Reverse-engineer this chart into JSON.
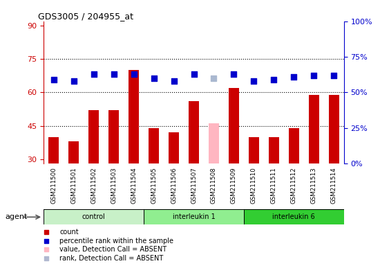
{
  "title": "GDS3005 / 204955_at",
  "samples": [
    "GSM211500",
    "GSM211501",
    "GSM211502",
    "GSM211503",
    "GSM211504",
    "GSM211505",
    "GSM211506",
    "GSM211507",
    "GSM211508",
    "GSM211509",
    "GSM211510",
    "GSM211511",
    "GSM211512",
    "GSM211513",
    "GSM211514"
  ],
  "bar_values": [
    40,
    38,
    52,
    52,
    70,
    44,
    42,
    56,
    46,
    62,
    40,
    40,
    44,
    59,
    59
  ],
  "bar_colors": [
    "#cc0000",
    "#cc0000",
    "#cc0000",
    "#cc0000",
    "#cc0000",
    "#cc0000",
    "#cc0000",
    "#cc0000",
    "#ffb6c1",
    "#cc0000",
    "#cc0000",
    "#cc0000",
    "#cc0000",
    "#cc0000",
    "#cc0000"
  ],
  "rank_values": [
    59,
    58,
    63,
    63,
    63,
    60,
    58,
    63,
    60,
    63,
    58,
    59,
    61,
    62,
    62
  ],
  "rank_colors": [
    "#0000cc",
    "#0000cc",
    "#0000cc",
    "#0000cc",
    "#0000cc",
    "#0000cc",
    "#0000cc",
    "#0000cc",
    "#aab8d0",
    "#0000cc",
    "#0000cc",
    "#0000cc",
    "#0000cc",
    "#0000cc",
    "#0000cc"
  ],
  "groups": [
    {
      "label": "control",
      "start": 0,
      "end": 5,
      "color": "#c8f0c8"
    },
    {
      "label": "interleukin 1",
      "start": 5,
      "end": 10,
      "color": "#90ee90"
    },
    {
      "label": "interleukin 6",
      "start": 10,
      "end": 15,
      "color": "#32cd32"
    }
  ],
  "ylim_left": [
    28,
    92
  ],
  "yticks_left": [
    30,
    45,
    60,
    75,
    90
  ],
  "yticks_right_vals": [
    28,
    44.5,
    61,
    77.5,
    94
  ],
  "ytick_labels_right": [
    "0%",
    "25%",
    "50%",
    "75%",
    "100%"
  ],
  "hlines": [
    45,
    60,
    75
  ],
  "left_color": "#cc0000",
  "right_color": "#0000cc",
  "bar_width": 0.5,
  "rank_marker_size": 28,
  "background_color": "#ffffff",
  "cell_color": "#d4d4d4"
}
